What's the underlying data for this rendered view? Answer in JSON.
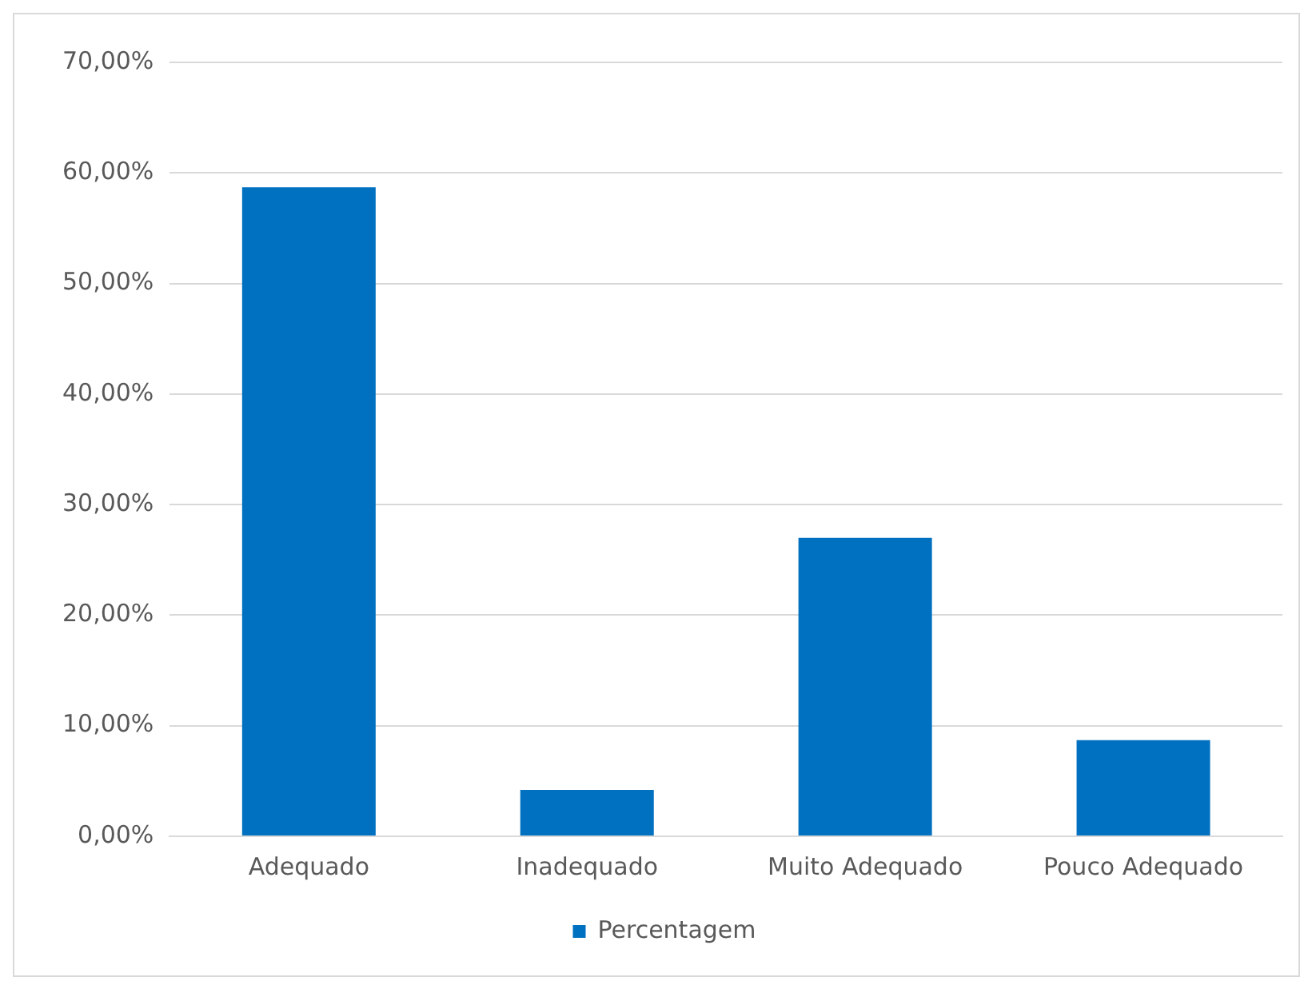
{
  "chart_data": {
    "type": "bar",
    "categories": [
      "Adequado",
      "Inadequado",
      "Muito Adequado",
      "Pouco Adequado"
    ],
    "series": [
      {
        "name": "Percentagem",
        "color": "#0070c0",
        "values": [
          58.7,
          4.2,
          27.0,
          8.7
        ]
      }
    ],
    "ylim": [
      0,
      70
    ],
    "yticks": [
      {
        "value": 0,
        "label": "0,00%"
      },
      {
        "value": 10,
        "label": "10,00%"
      },
      {
        "value": 20,
        "label": "20,00%"
      },
      {
        "value": 30,
        "label": "30,00%"
      },
      {
        "value": 40,
        "label": "40,00%"
      },
      {
        "value": 50,
        "label": "50,00%"
      },
      {
        "value": 60,
        "label": "60,00%"
      },
      {
        "value": 70,
        "label": "70,00%"
      }
    ],
    "grid": "y",
    "legend": "bottom"
  }
}
